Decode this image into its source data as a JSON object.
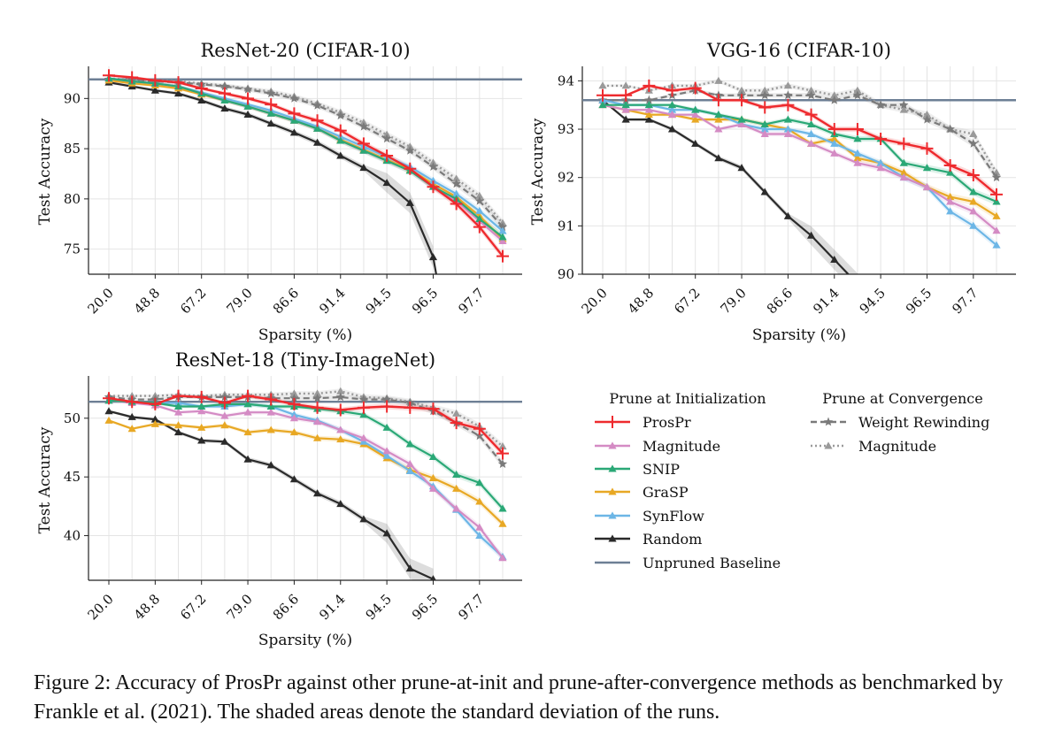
{
  "colors": {
    "ProsPr": "#ee2a2e",
    "Magnitude": "#d48bc4",
    "SNIP": "#2aa876",
    "GraSP": "#e8a824",
    "SynFlow": "#6cb6e6",
    "Random": "#2a2a2a",
    "Unpruned Baseline": "#6d7f95",
    "Weight Rewinding": "#7a7a7a",
    "Magnitude (Convergence)": "#9a9a9a"
  },
  "legend": {
    "init_title": "Prune at Initialization",
    "conv_title": "Prune at Convergence",
    "init_items": [
      "ProsPr",
      "Magnitude",
      "SNIP",
      "GraSP",
      "SynFlow",
      "Random",
      "Unpruned Baseline"
    ],
    "conv_items": [
      "Weight Rewinding",
      "Magnitude"
    ]
  },
  "chart_data": [
    {
      "type": "line",
      "title": "ResNet-20 (CIFAR-10)",
      "xlabel": "Sparsity (%)",
      "ylabel": "Test Accuracy",
      "x_tick_labels": [
        "20.0",
        "48.8",
        "67.2",
        "79.0",
        "86.6",
        "91.4",
        "94.5",
        "96.5",
        "97.7"
      ],
      "yticks": [
        75,
        80,
        85,
        90
      ],
      "ylim": [
        72.5,
        93.2
      ],
      "baseline": 91.9,
      "series": [
        {
          "name": "ProsPr",
          "values": [
            92.3,
            92.1,
            91.8,
            91.6,
            91.0,
            90.5,
            90.0,
            89.4,
            88.5,
            87.8,
            86.8,
            85.5,
            84.3,
            83.0,
            81.2,
            79.5,
            77.2,
            74.3
          ]
        },
        {
          "name": "Magnitude",
          "values": [
            92.0,
            91.7,
            91.5,
            91.2,
            90.5,
            89.8,
            89.2,
            88.5,
            87.8,
            87.0,
            85.8,
            84.8,
            83.8,
            82.8,
            81.2,
            79.8,
            77.8,
            75.8
          ]
        },
        {
          "name": "SNIP",
          "values": [
            92.0,
            91.7,
            91.5,
            91.2,
            90.5,
            89.8,
            89.2,
            88.5,
            87.8,
            87.0,
            85.8,
            84.8,
            83.8,
            82.8,
            81.2,
            80.0,
            78.0,
            76.2
          ]
        },
        {
          "name": "GraSP",
          "values": [
            91.8,
            91.5,
            91.3,
            91.0,
            90.4,
            89.8,
            89.2,
            88.5,
            87.8,
            87.0,
            85.9,
            84.9,
            83.9,
            82.9,
            81.5,
            80.2,
            78.3,
            76.0
          ]
        },
        {
          "name": "SynFlow",
          "values": [
            92.0,
            91.7,
            91.5,
            91.2,
            90.6,
            90.0,
            89.4,
            88.8,
            88.0,
            87.2,
            86.2,
            85.2,
            84.2,
            83.2,
            81.8,
            80.5,
            78.8,
            76.8
          ]
        },
        {
          "name": "Random",
          "values": [
            91.6,
            91.2,
            90.8,
            90.5,
            89.8,
            89.0,
            88.4,
            87.5,
            86.6,
            85.6,
            84.3,
            83.1,
            81.6,
            79.6,
            74.2,
            null,
            null,
            null
          ]
        },
        {
          "name": "Weight Rewinding",
          "values": [
            91.9,
            91.8,
            91.7,
            91.6,
            91.4,
            91.2,
            90.9,
            90.5,
            90.0,
            89.3,
            88.3,
            87.2,
            86.0,
            84.8,
            83.2,
            81.5,
            79.8,
            77.2
          ]
        },
        {
          "name": "Magnitude (Convergence)",
          "values": [
            92.0,
            91.9,
            91.8,
            91.7,
            91.5,
            91.3,
            91.0,
            90.7,
            90.2,
            89.5,
            88.6,
            87.6,
            86.4,
            85.2,
            83.6,
            82.0,
            80.3,
            77.6
          ]
        }
      ]
    },
    {
      "type": "line",
      "title": "VGG-16 (CIFAR-10)",
      "xlabel": "Sparsity (%)",
      "ylabel": "Test Accuracy",
      "x_tick_labels": [
        "20.0",
        "48.8",
        "67.2",
        "79.0",
        "86.6",
        "91.4",
        "94.5",
        "96.5",
        "97.7"
      ],
      "yticks": [
        90,
        91,
        92,
        93,
        94
      ],
      "ylim": [
        90,
        94.3
      ],
      "baseline": 93.6,
      "series": [
        {
          "name": "ProsPr",
          "values": [
            93.7,
            93.7,
            93.9,
            93.8,
            93.85,
            93.6,
            93.6,
            93.45,
            93.5,
            93.3,
            93.0,
            93.0,
            92.8,
            92.7,
            92.6,
            92.25,
            92.05,
            91.65
          ]
        },
        {
          "name": "Magnitude",
          "values": [
            93.5,
            93.4,
            93.4,
            93.3,
            93.3,
            93.0,
            93.1,
            92.9,
            92.9,
            92.7,
            92.5,
            92.3,
            92.2,
            92.0,
            91.8,
            91.5,
            91.3,
            90.9
          ]
        },
        {
          "name": "SNIP",
          "values": [
            93.5,
            93.5,
            93.5,
            93.5,
            93.4,
            93.3,
            93.2,
            93.1,
            93.2,
            93.1,
            92.9,
            92.8,
            92.8,
            92.3,
            92.2,
            92.1,
            91.7,
            91.5
          ]
        },
        {
          "name": "GraSP",
          "values": [
            93.5,
            93.4,
            93.3,
            93.3,
            93.2,
            93.2,
            93.2,
            93.1,
            93.0,
            92.7,
            92.8,
            92.4,
            92.3,
            92.1,
            91.8,
            91.6,
            91.5,
            91.2
          ]
        },
        {
          "name": "SynFlow",
          "values": [
            93.6,
            93.5,
            93.5,
            93.4,
            93.4,
            93.3,
            93.1,
            93.0,
            93.0,
            92.9,
            92.7,
            92.5,
            92.3,
            92.0,
            91.8,
            91.3,
            91.0,
            90.6
          ]
        },
        {
          "name": "Random",
          "values": [
            93.6,
            93.2,
            93.2,
            93.0,
            92.7,
            92.4,
            92.2,
            91.7,
            91.2,
            90.8,
            90.3,
            89.8,
            null,
            null,
            null,
            null,
            null,
            null
          ]
        },
        {
          "name": "Weight Rewinding",
          "values": [
            93.6,
            93.6,
            93.6,
            93.7,
            93.8,
            93.7,
            93.7,
            93.7,
            93.7,
            93.7,
            93.6,
            93.7,
            93.5,
            93.5,
            93.2,
            93.0,
            92.7,
            92.0
          ]
        },
        {
          "name": "Magnitude (Convergence)",
          "values": [
            93.9,
            93.9,
            93.8,
            93.9,
            93.9,
            94.0,
            93.8,
            93.8,
            93.9,
            93.8,
            93.7,
            93.8,
            93.5,
            93.4,
            93.3,
            93.0,
            92.9,
            92.1
          ]
        }
      ]
    },
    {
      "type": "line",
      "title": "ResNet-18 (Tiny-ImageNet)",
      "xlabel": "Sparsity (%)",
      "ylabel": "Test Accuracy",
      "x_tick_labels": [
        "20.0",
        "48.8",
        "67.2",
        "79.0",
        "86.6",
        "91.4",
        "94.5",
        "96.5",
        "97.7"
      ],
      "yticks": [
        40,
        45,
        50
      ],
      "ylim": [
        36.2,
        53.6
      ],
      "baseline": 51.4,
      "series": [
        {
          "name": "ProsPr",
          "values": [
            51.7,
            51.4,
            51.2,
            51.9,
            51.8,
            51.3,
            51.9,
            51.6,
            51.2,
            50.9,
            50.7,
            50.9,
            51.0,
            50.9,
            50.8,
            49.6,
            49.1,
            47.0
          ]
        },
        {
          "name": "Magnitude",
          "values": [
            51.5,
            51.3,
            51.1,
            50.5,
            50.6,
            50.2,
            50.5,
            50.5,
            50.0,
            49.7,
            49.0,
            48.3,
            47.2,
            46.1,
            44.0,
            42.3,
            40.7,
            38.1
          ]
        },
        {
          "name": "SNIP",
          "values": [
            51.5,
            51.4,
            51.3,
            51.0,
            51.0,
            51.2,
            51.2,
            51.0,
            51.0,
            50.8,
            50.6,
            50.3,
            49.2,
            47.8,
            46.7,
            45.2,
            44.5,
            42.3
          ]
        },
        {
          "name": "GraSP",
          "values": [
            49.8,
            49.1,
            49.5,
            49.4,
            49.2,
            49.4,
            48.8,
            49.0,
            48.8,
            48.3,
            48.2,
            47.8,
            46.6,
            45.6,
            44.9,
            44.0,
            42.9,
            41.0
          ]
        },
        {
          "name": "SynFlow",
          "values": [
            51.5,
            51.4,
            51.3,
            51.3,
            51.0,
            51.0,
            51.2,
            51.0,
            50.3,
            49.8,
            49.0,
            48.0,
            46.8,
            45.5,
            44.2,
            42.2,
            40.0,
            38.2
          ]
        },
        {
          "name": "Random",
          "values": [
            50.6,
            50.1,
            49.9,
            48.8,
            48.1,
            48.0,
            46.5,
            46.0,
            44.8,
            43.6,
            42.7,
            41.4,
            40.2,
            37.2,
            36.3,
            null,
            null,
            null
          ]
        },
        {
          "name": "Weight Rewinding",
          "values": [
            51.8,
            51.6,
            51.6,
            51.8,
            51.8,
            51.8,
            51.8,
            51.7,
            51.7,
            51.7,
            51.8,
            51.6,
            51.6,
            51.3,
            50.6,
            49.6,
            48.5,
            46.1
          ]
        },
        {
          "name": "Magnitude (Convergence)",
          "values": [
            51.9,
            51.9,
            51.9,
            52.0,
            51.9,
            52.0,
            52.0,
            52.0,
            52.1,
            52.1,
            52.3,
            51.8,
            51.7,
            51.4,
            50.9,
            50.4,
            49.3,
            47.6
          ]
        }
      ]
    }
  ],
  "caption": "Figure 2: Accuracy of ProsPr against other prune-at-init and prune-after-convergence methods as benchmarked by Frankle et al. (2021). The shaded areas denote the standard deviation of the runs."
}
